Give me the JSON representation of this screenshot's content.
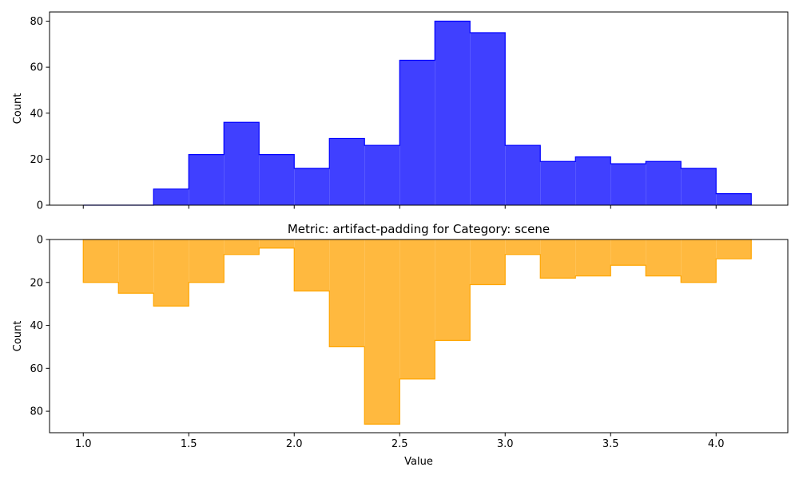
{
  "chart_data": [
    {
      "type": "histogram-step",
      "title": "",
      "xlabel": "",
      "ylabel": "Count",
      "xlim": [
        0.84,
        4.34
      ],
      "ylim": [
        0,
        84
      ],
      "y_inverted": false,
      "x_ticks": [
        1.0,
        1.5,
        2.0,
        2.5,
        3.0,
        3.5,
        4.0
      ],
      "x_tick_labels_shown": false,
      "y_ticks": [
        0,
        20,
        40,
        60,
        80
      ],
      "y_tick_labels": [
        "0",
        "20",
        "40",
        "60",
        "80"
      ],
      "fill_color": "#4040ff",
      "edge_color": "#0000ff",
      "bin_edges": [
        1.0,
        1.1667,
        1.3333,
        1.5,
        1.6667,
        1.8333,
        2.0,
        2.1667,
        2.3333,
        2.5,
        2.6667,
        2.8333,
        3.0,
        3.1667,
        3.3333,
        3.5,
        3.6667,
        3.8333,
        4.0,
        4.1667
      ],
      "values": [
        0,
        0,
        7,
        22,
        36,
        22,
        16,
        29,
        26,
        63,
        80,
        75,
        26,
        19,
        21,
        18,
        19,
        16,
        5
      ]
    },
    {
      "type": "histogram-step",
      "title": "Metric: artifact-padding for Category: scene",
      "xlabel": "Value",
      "ylabel": "Count",
      "xlim": [
        0.84,
        4.34
      ],
      "ylim": [
        0,
        90
      ],
      "y_inverted": true,
      "x_ticks": [
        1.0,
        1.5,
        2.0,
        2.5,
        3.0,
        3.5,
        4.0
      ],
      "x_tick_labels": [
        "1.0",
        "1.5",
        "2.0",
        "2.5",
        "3.0",
        "3.5",
        "4.0"
      ],
      "y_ticks": [
        0,
        20,
        40,
        60,
        80
      ],
      "y_tick_labels": [
        "0",
        "20",
        "40",
        "60",
        "80"
      ],
      "fill_color": "#ffb93f",
      "edge_color": "#ffa500",
      "bin_edges": [
        1.0,
        1.1667,
        1.3333,
        1.5,
        1.6667,
        1.8333,
        2.0,
        2.1667,
        2.3333,
        2.5,
        2.6667,
        2.8333,
        3.0,
        3.1667,
        3.3333,
        3.5,
        3.6667,
        3.8333,
        4.0,
        4.1667
      ],
      "values": [
        20,
        25,
        31,
        20,
        7,
        4,
        24,
        50,
        86,
        65,
        47,
        21,
        7,
        18,
        17,
        12,
        17,
        20,
        9
      ]
    }
  ]
}
